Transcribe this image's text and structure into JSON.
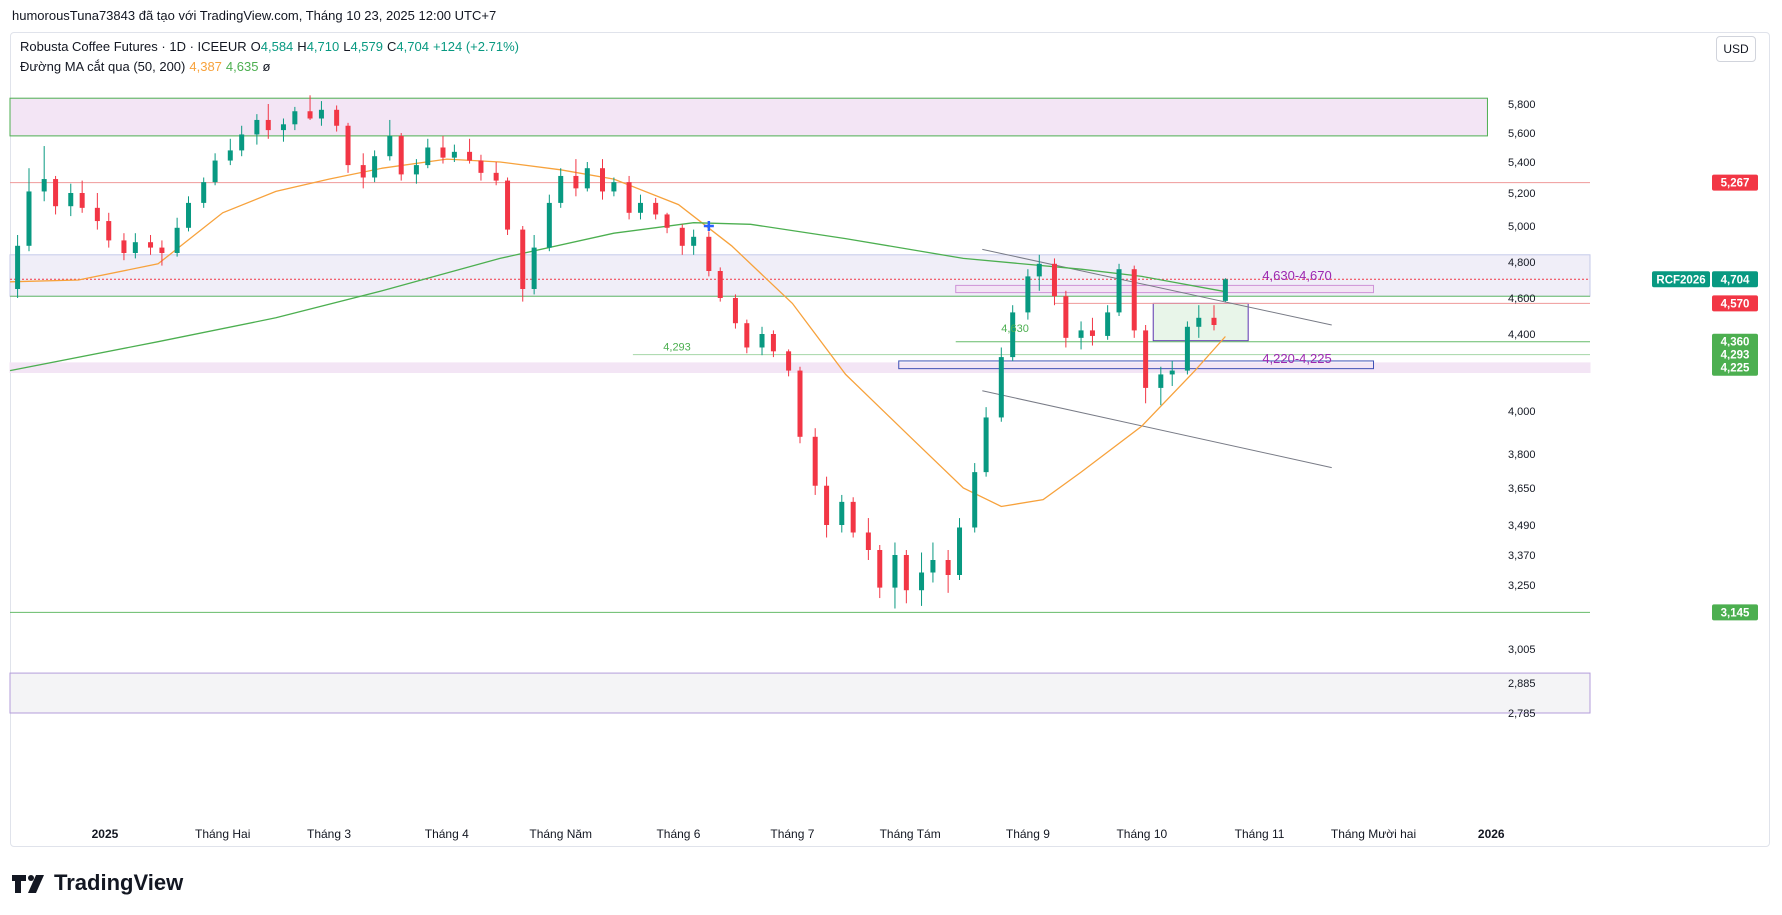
{
  "header": {
    "attribution": "humorousTuna73843 đã tạo với TradingView.com, Tháng 10 23, 2025 12:00 UTC+7"
  },
  "legend": {
    "symbol": "Robusta Coffee Futures · 1D · ICEEUR",
    "o_label": "O",
    "o_value": "4,584",
    "h_label": "H",
    "h_value": "4,710",
    "l_label": "L",
    "l_value": "4,579",
    "c_label": "C",
    "c_value": "4,704",
    "change": "+124 (+2.71%)",
    "ma_label": "Đường MA cắt qua (50, 200)",
    "ma50_value": "4,387",
    "ma200_value": "4,635",
    "ma_symbol": "ø"
  },
  "currency": "USD",
  "logo_text": "TradingView",
  "colors": {
    "up": "#089981",
    "down": "#f23645",
    "ma50": "#f7a23c",
    "ma200": "#4caf50",
    "zone_purple": "#9c27b0",
    "box_green": "#4caf50"
  },
  "chart_data": {
    "type": "candlestick",
    "symbol": "RCF2026",
    "ylim": [
      2785,
      5850
    ],
    "y_ticks": [
      "5,800",
      "5,600",
      "5,400",
      "5,200",
      "5,000",
      "4,800",
      "4,600",
      "4,400",
      "4,000",
      "3,800",
      "3,650",
      "3,490",
      "3,370",
      "3,250",
      "3,005",
      "2,885",
      "2,785"
    ],
    "x_labels": [
      "2025",
      "Tháng Hai",
      "Tháng 3",
      "Tháng 4",
      "Tháng Năm",
      "Tháng 6",
      "Tháng 7",
      "Tháng Tám",
      "Tháng 9",
      "Tháng 10",
      "Tháng 11",
      "Tháng Mười hai",
      "2026"
    ],
    "x_label_dates": [
      "2025-01-01",
      "2025-02-01",
      "2025-03-01",
      "2025-04-01",
      "2025-05-01",
      "2025-06-01",
      "2025-07-01",
      "2025-08-01",
      "2025-09-01",
      "2025-10-01",
      "2025-11-01",
      "2025-12-01",
      "2026-01-01"
    ],
    "x_range": [
      "2024-12-07",
      "2026-01-27"
    ],
    "price_badges": [
      {
        "label": "5,267",
        "price": 5267,
        "color": "#f23645"
      },
      {
        "label": "RCF2026",
        "price": 4704,
        "color": "#089981"
      },
      {
        "label": "4,704",
        "price": 4704,
        "color": "#089981"
      },
      {
        "label": "4,570",
        "price": 4570,
        "color": "#f23645"
      },
      {
        "label": "4,360",
        "price": 4360,
        "color": "#4caf50"
      },
      {
        "label": "4,293",
        "price": 4293,
        "color": "#4caf50"
      },
      {
        "label": "4,225",
        "price": 4225,
        "color": "#4caf50"
      },
      {
        "label": "3,145",
        "price": 3145,
        "color": "#4caf50"
      }
    ],
    "annotations": [
      {
        "text": "4,630-4,670",
        "date": "2025-11-20",
        "price": 4700,
        "color": "#9c27b0"
      },
      {
        "text": "4,220-4,225",
        "date": "2025-11-20",
        "price": 4250,
        "color": "#9c27b0"
      },
      {
        "text": "4,630",
        "date": "2025-08-25",
        "price": 4410,
        "color": "#4caf50"
      },
      {
        "text": "4,293",
        "date": "2025-05-28",
        "price": 4315,
        "color": "#4caf50"
      }
    ],
    "zones": [
      {
        "from": "2024-12-07",
        "to": "2025-12-31",
        "low": 5580,
        "high": 5840,
        "fill": "#f3e5f5",
        "stroke": "#4caf50"
      },
      {
        "from": "2024-12-07",
        "to": "2026-01-27",
        "low": 4610,
        "high": 4840,
        "fill": "#f0eef8",
        "stroke": "#c5cae9"
      },
      {
        "from": "2025-08-13",
        "to": "2025-12-01",
        "low": 4630,
        "high": 4670,
        "fill": "#f3e5f5",
        "stroke": "#ce93d8"
      },
      {
        "from": "2024-12-07",
        "to": "2026-01-27",
        "low": 4200,
        "high": 4250,
        "fill": "#f3e5f5",
        "stroke": "#f3e5f5"
      },
      {
        "from": "2025-07-29",
        "to": "2025-12-01",
        "low": 4220,
        "high": 4260,
        "fill": "none",
        "stroke": "#3f51b5"
      },
      {
        "from": "2025-10-04",
        "to": "2025-10-29",
        "low": 4365,
        "high": 4570,
        "fill": "#e8f5e9",
        "stroke": "#5e35b1"
      },
      {
        "from": "2024-12-07",
        "to": "2026-01-27",
        "low": 2785,
        "high": 2920,
        "fill": "#f4f4f6",
        "stroke": "#b39ddb"
      }
    ],
    "hlines": [
      {
        "price": 5267,
        "from": "2024-12-07",
        "to": "2026-01-27",
        "color": "#ef9a9a"
      },
      {
        "price": 4704,
        "from": "2024-12-07",
        "to": "2026-01-27",
        "color": "#f23645",
        "dashed": true
      },
      {
        "price": 4610,
        "from": "2024-12-07",
        "to": "2026-01-27",
        "color": "#66bb6a"
      },
      {
        "price": 4570,
        "from": "2025-09-08",
        "to": "2026-01-27",
        "color": "#ef9a9a"
      },
      {
        "price": 4360,
        "from": "2025-08-13",
        "to": "2026-01-27",
        "color": "#66bb6a"
      },
      {
        "price": 4293,
        "from": "2025-05-20",
        "to": "2026-01-27",
        "color": "#a5d6a7"
      },
      {
        "price": 3145,
        "from": "2024-12-07",
        "to": "2026-01-27",
        "color": "#66bb6a"
      }
    ],
    "trendlines": [
      {
        "from": [
          "2025-08-20",
          4870
        ],
        "to": [
          "2025-11-20",
          4450
        ],
        "color": "#787b86"
      },
      {
        "from": [
          "2025-08-20",
          4105
        ],
        "to": [
          "2025-11-20",
          3740
        ],
        "color": "#787b86"
      }
    ],
    "series": [
      {
        "name": "MA 50",
        "color": "#f7a23c",
        "points": [
          [
            "2024-12-07",
            4690
          ],
          [
            "2024-12-25",
            4700
          ],
          [
            "2025-01-15",
            4790
          ],
          [
            "2025-02-01",
            5080
          ],
          [
            "2025-02-15",
            5210
          ],
          [
            "2025-03-01",
            5290
          ],
          [
            "2025-03-15",
            5360
          ],
          [
            "2025-04-01",
            5420
          ],
          [
            "2025-04-15",
            5400
          ],
          [
            "2025-05-01",
            5350
          ],
          [
            "2025-05-15",
            5290
          ],
          [
            "2025-06-01",
            5130
          ],
          [
            "2025-06-15",
            4890
          ],
          [
            "2025-07-01",
            4570
          ],
          [
            "2025-07-15",
            4190
          ],
          [
            "2025-08-01",
            3880
          ],
          [
            "2025-08-15",
            3650
          ],
          [
            "2025-08-25",
            3570
          ],
          [
            "2025-09-05",
            3600
          ],
          [
            "2025-09-15",
            3720
          ],
          [
            "2025-10-01",
            3930
          ],
          [
            "2025-10-15",
            4210
          ],
          [
            "2025-10-23",
            4387
          ]
        ]
      },
      {
        "name": "MA 200",
        "color": "#4caf50",
        "points": [
          [
            "2024-12-07",
            4210
          ],
          [
            "2025-01-15",
            4360
          ],
          [
            "2025-02-15",
            4490
          ],
          [
            "2025-03-15",
            4640
          ],
          [
            "2025-04-15",
            4820
          ],
          [
            "2025-05-15",
            4960
          ],
          [
            "2025-06-05",
            5020
          ],
          [
            "2025-06-20",
            5010
          ],
          [
            "2025-07-15",
            4930
          ],
          [
            "2025-08-15",
            4820
          ],
          [
            "2025-09-15",
            4760
          ],
          [
            "2025-10-01",
            4720
          ],
          [
            "2025-10-23",
            4635
          ]
        ]
      }
    ],
    "markers": [
      {
        "date": "2025-06-09",
        "price": 5000,
        "shape": "cross",
        "color": "#2962ff"
      }
    ],
    "candles": [
      [
        "2024-12-09",
        4650,
        4950,
        4600,
        4890
      ],
      [
        "2024-12-12",
        4890,
        5360,
        4860,
        5210
      ],
      [
        "2024-12-16",
        5210,
        5510,
        5150,
        5290
      ],
      [
        "2024-12-19",
        5290,
        5310,
        5070,
        5120
      ],
      [
        "2024-12-23",
        5120,
        5260,
        5060,
        5200
      ],
      [
        "2024-12-26",
        5200,
        5280,
        5080,
        5110
      ],
      [
        "2024-12-30",
        5110,
        5200,
        4980,
        5030
      ],
      [
        "2025-01-02",
        5030,
        5080,
        4880,
        4920
      ],
      [
        "2025-01-06",
        4920,
        4960,
        4810,
        4850
      ],
      [
        "2025-01-09",
        4850,
        4960,
        4820,
        4910
      ],
      [
        "2025-01-13",
        4910,
        4950,
        4840,
        4880
      ],
      [
        "2025-01-16",
        4880,
        4920,
        4780,
        4850
      ],
      [
        "2025-01-20",
        4850,
        5050,
        4830,
        4990
      ],
      [
        "2025-01-23",
        4990,
        5180,
        4970,
        5140
      ],
      [
        "2025-01-27",
        5140,
        5300,
        5110,
        5270
      ],
      [
        "2025-01-30",
        5270,
        5460,
        5250,
        5410
      ],
      [
        "2025-02-03",
        5410,
        5560,
        5380,
        5480
      ],
      [
        "2025-02-06",
        5480,
        5650,
        5440,
        5590
      ],
      [
        "2025-02-10",
        5590,
        5730,
        5520,
        5690
      ],
      [
        "2025-02-13",
        5690,
        5800,
        5560,
        5620
      ],
      [
        "2025-02-17",
        5620,
        5700,
        5540,
        5660
      ],
      [
        "2025-02-20",
        5660,
        5780,
        5620,
        5750
      ],
      [
        "2025-02-24",
        5750,
        5860,
        5690,
        5700
      ],
      [
        "2025-02-27",
        5700,
        5820,
        5650,
        5760
      ],
      [
        "2025-03-03",
        5760,
        5790,
        5610,
        5650
      ],
      [
        "2025-03-06",
        5650,
        5670,
        5330,
        5380
      ],
      [
        "2025-03-10",
        5380,
        5460,
        5230,
        5300
      ],
      [
        "2025-03-13",
        5300,
        5480,
        5270,
        5440
      ],
      [
        "2025-03-17",
        5440,
        5690,
        5410,
        5580
      ],
      [
        "2025-03-20",
        5580,
        5600,
        5280,
        5320
      ],
      [
        "2025-03-24",
        5320,
        5420,
        5260,
        5380
      ],
      [
        "2025-03-27",
        5380,
        5560,
        5360,
        5500
      ],
      [
        "2025-03-31",
        5500,
        5580,
        5390,
        5430
      ],
      [
        "2025-04-03",
        5430,
        5520,
        5400,
        5470
      ],
      [
        "2025-04-07",
        5470,
        5560,
        5390,
        5410
      ],
      [
        "2025-04-10",
        5410,
        5450,
        5280,
        5330
      ],
      [
        "2025-04-14",
        5330,
        5400,
        5250,
        5280
      ],
      [
        "2025-04-17",
        5280,
        5300,
        4950,
        4980
      ],
      [
        "2025-04-21",
        4980,
        5000,
        4580,
        4650
      ],
      [
        "2025-04-24",
        4650,
        4950,
        4620,
        4880
      ],
      [
        "2025-04-28",
        4880,
        5190,
        4860,
        5140
      ],
      [
        "2025-05-01",
        5140,
        5360,
        5110,
        5310
      ],
      [
        "2025-05-05",
        5310,
        5420,
        5180,
        5230
      ],
      [
        "2025-05-08",
        5230,
        5400,
        5210,
        5360
      ],
      [
        "2025-05-12",
        5360,
        5420,
        5160,
        5210
      ],
      [
        "2025-05-15",
        5210,
        5300,
        5180,
        5270
      ],
      [
        "2025-05-19",
        5270,
        5310,
        5040,
        5080
      ],
      [
        "2025-05-22",
        5080,
        5190,
        5040,
        5140
      ],
      [
        "2025-05-26",
        5140,
        5170,
        5040,
        5070
      ],
      [
        "2025-05-29",
        5070,
        5080,
        4960,
        4990
      ],
      [
        "2025-06-02",
        4990,
        5010,
        4840,
        4890
      ],
      [
        "2025-06-05",
        4890,
        4980,
        4840,
        4940
      ],
      [
        "2025-06-09",
        4940,
        4970,
        4720,
        4750
      ],
      [
        "2025-06-12",
        4750,
        4770,
        4580,
        4600
      ],
      [
        "2025-06-16",
        4600,
        4620,
        4430,
        4460
      ],
      [
        "2025-06-19",
        4460,
        4480,
        4300,
        4330
      ],
      [
        "2025-06-23",
        4330,
        4440,
        4290,
        4400
      ],
      [
        "2025-06-26",
        4400,
        4420,
        4280,
        4310
      ],
      [
        "2025-06-30",
        4310,
        4320,
        4180,
        4210
      ],
      [
        "2025-07-03",
        4210,
        4230,
        3850,
        3880
      ],
      [
        "2025-07-07",
        3880,
        3920,
        3620,
        3660
      ],
      [
        "2025-07-10",
        3660,
        3700,
        3440,
        3490
      ],
      [
        "2025-07-14",
        3490,
        3620,
        3460,
        3590
      ],
      [
        "2025-07-17",
        3590,
        3610,
        3440,
        3460
      ],
      [
        "2025-07-21",
        3460,
        3520,
        3350,
        3390
      ],
      [
        "2025-07-24",
        3390,
        3410,
        3200,
        3240
      ],
      [
        "2025-07-28",
        3240,
        3420,
        3160,
        3370
      ],
      [
        "2025-07-31",
        3370,
        3390,
        3180,
        3230
      ],
      [
        "2025-08-04",
        3230,
        3380,
        3170,
        3300
      ],
      [
        "2025-08-07",
        3300,
        3420,
        3260,
        3350
      ],
      [
        "2025-08-11",
        3350,
        3390,
        3220,
        3290
      ],
      [
        "2025-08-14",
        3290,
        3520,
        3270,
        3480
      ],
      [
        "2025-08-18",
        3480,
        3760,
        3460,
        3720
      ],
      [
        "2025-08-21",
        3720,
        4020,
        3700,
        3970
      ],
      [
        "2025-08-25",
        3970,
        4330,
        3950,
        4280
      ],
      [
        "2025-08-28",
        4280,
        4560,
        4260,
        4520
      ],
      [
        "2025-09-01",
        4520,
        4760,
        4480,
        4720
      ],
      [
        "2025-09-04",
        4720,
        4840,
        4640,
        4790
      ],
      [
        "2025-09-08",
        4790,
        4820,
        4560,
        4610
      ],
      [
        "2025-09-11",
        4610,
        4640,
        4330,
        4380
      ],
      [
        "2025-09-15",
        4380,
        4470,
        4320,
        4420
      ],
      [
        "2025-09-18",
        4420,
        4490,
        4340,
        4390
      ],
      [
        "2025-09-22",
        4390,
        4560,
        4370,
        4520
      ],
      [
        "2025-09-25",
        4520,
        4790,
        4500,
        4760
      ],
      [
        "2025-09-29",
        4760,
        4780,
        4380,
        4420
      ],
      [
        "2025-10-02",
        4420,
        4450,
        4040,
        4120
      ],
      [
        "2025-10-06",
        4120,
        4230,
        4030,
        4190
      ],
      [
        "2025-10-09",
        4190,
        4260,
        4130,
        4210
      ],
      [
        "2025-10-13",
        4210,
        4470,
        4190,
        4440
      ],
      [
        "2025-10-16",
        4440,
        4560,
        4380,
        4490
      ],
      [
        "2025-10-20",
        4490,
        4560,
        4420,
        4450
      ],
      [
        "2025-10-23",
        4584,
        4710,
        4579,
        4704
      ]
    ]
  }
}
